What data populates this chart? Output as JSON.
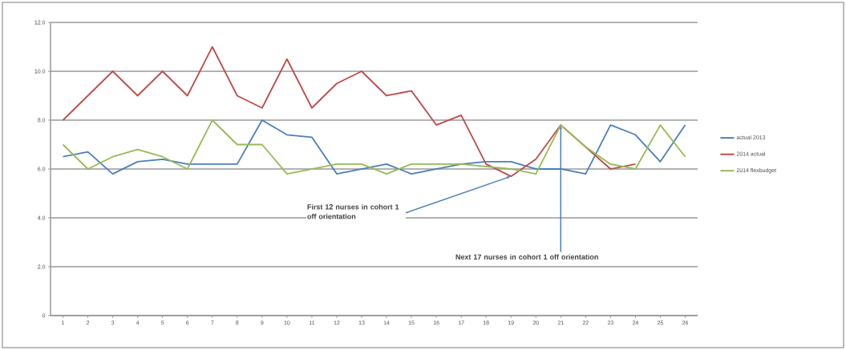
{
  "chart_data": {
    "type": "line",
    "categories": [
      "1",
      "2",
      "3",
      "4",
      "5",
      "6",
      "7",
      "8",
      "9",
      "10",
      "11",
      "12",
      "13",
      "14",
      "15",
      "16",
      "17",
      "18",
      "19",
      "20",
      "21",
      "22",
      "23",
      "24",
      "25",
      "26"
    ],
    "series": [
      {
        "name": "actual 2013",
        "color": "#4a7ebb",
        "values": [
          6.5,
          6.7,
          5.8,
          6.3,
          6.4,
          6.2,
          6.2,
          6.2,
          8.0,
          7.4,
          7.3,
          5.8,
          6.0,
          6.2,
          5.8,
          6.0,
          6.2,
          6.3,
          6.3,
          6.0,
          6.0,
          5.8,
          7.8,
          7.4,
          6.3,
          7.8
        ]
      },
      {
        "name": "2014 actual",
        "color": "#be4b48",
        "values": [
          8.0,
          9.0,
          10.0,
          9.0,
          10.0,
          9.0,
          11.0,
          9.0,
          8.5,
          10.5,
          8.5,
          9.5,
          10.0,
          9.0,
          9.2,
          7.8,
          8.2,
          6.2,
          5.7,
          6.4,
          7.8,
          6.9,
          6.0,
          6.2,
          null,
          null
        ]
      },
      {
        "name": "2014 flexbudget",
        "color": "#98b954",
        "values": [
          7.0,
          6.0,
          6.5,
          6.8,
          6.5,
          6.0,
          8.0,
          7.0,
          7.0,
          5.8,
          6.0,
          6.2,
          6.2,
          5.8,
          6.2,
          6.2,
          6.2,
          6.1,
          6.0,
          5.8,
          7.8,
          6.9,
          6.2,
          6.0,
          7.8,
          6.5
        ]
      }
    ],
    "ylim": [
      0,
      12
    ],
    "yticks": [
      0,
      {
        "value": 2,
        "label": "2.0"
      },
      {
        "value": 4,
        "label": "4.0"
      },
      {
        "value": 6,
        "label": "6.0"
      },
      {
        "value": 8,
        "label": "8.0"
      },
      {
        "value": 10,
        "label": "10.0"
      },
      {
        "value": 12,
        "label": "12.0"
      }
    ],
    "grid": "y",
    "legend": "right",
    "marker": "none",
    "line_style": "solid",
    "annotations": [
      {
        "text": "First 12 nurses in cohort 1 off orientation",
        "x": "19",
        "y": 5.7
      },
      {
        "text": "Next 17 nurses in cohort 1 off orientation",
        "x": "21",
        "y": 7.8
      }
    ]
  }
}
